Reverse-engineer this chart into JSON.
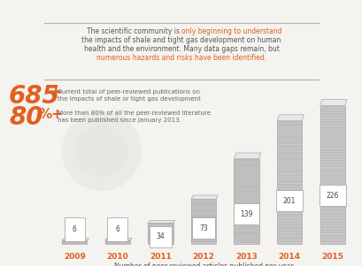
{
  "years": [
    "2009",
    "2010",
    "2011",
    "2012",
    "2013",
    "2014",
    "2015"
  ],
  "values": [
    6,
    6,
    34,
    73,
    139,
    201,
    226
  ],
  "bar_fill": "#c8c8c8",
  "bar_edge": "#999999",
  "bar_line": "#aaaaaa",
  "bar_top": "#e5e5e5",
  "year_color": "#e06020",
  "orange_color": "#e06020",
  "gray_color": "#666666",
  "bg_color": "#f4f3ef",
  "divider_color": "#b0b0b0",
  "title_gray": "The scientific community is ",
  "title_orange1": "only beginning to understand",
  "title_line2": "the impacts of shale and tight gas development on human",
  "title_line3": "health and the environment. Many data gaps remain, but",
  "title_orange2": "numerous hazards and risks have been identified.",
  "stat1_num": "685",
  "stat1_plus": "+",
  "stat1_desc1": "Current total of peer-reviewed publications on",
  "stat1_desc2": "the impacts of shale or tight gas development",
  "stat2_num": "80",
  "stat2_pct": "%",
  "stat2_plus": "+",
  "stat2_desc1": "More than 80% of all the peer-reviewed literature",
  "stat2_desc2": "has been published since January 2013.",
  "xlabel": "Number of peer-reviewed articles published per year"
}
